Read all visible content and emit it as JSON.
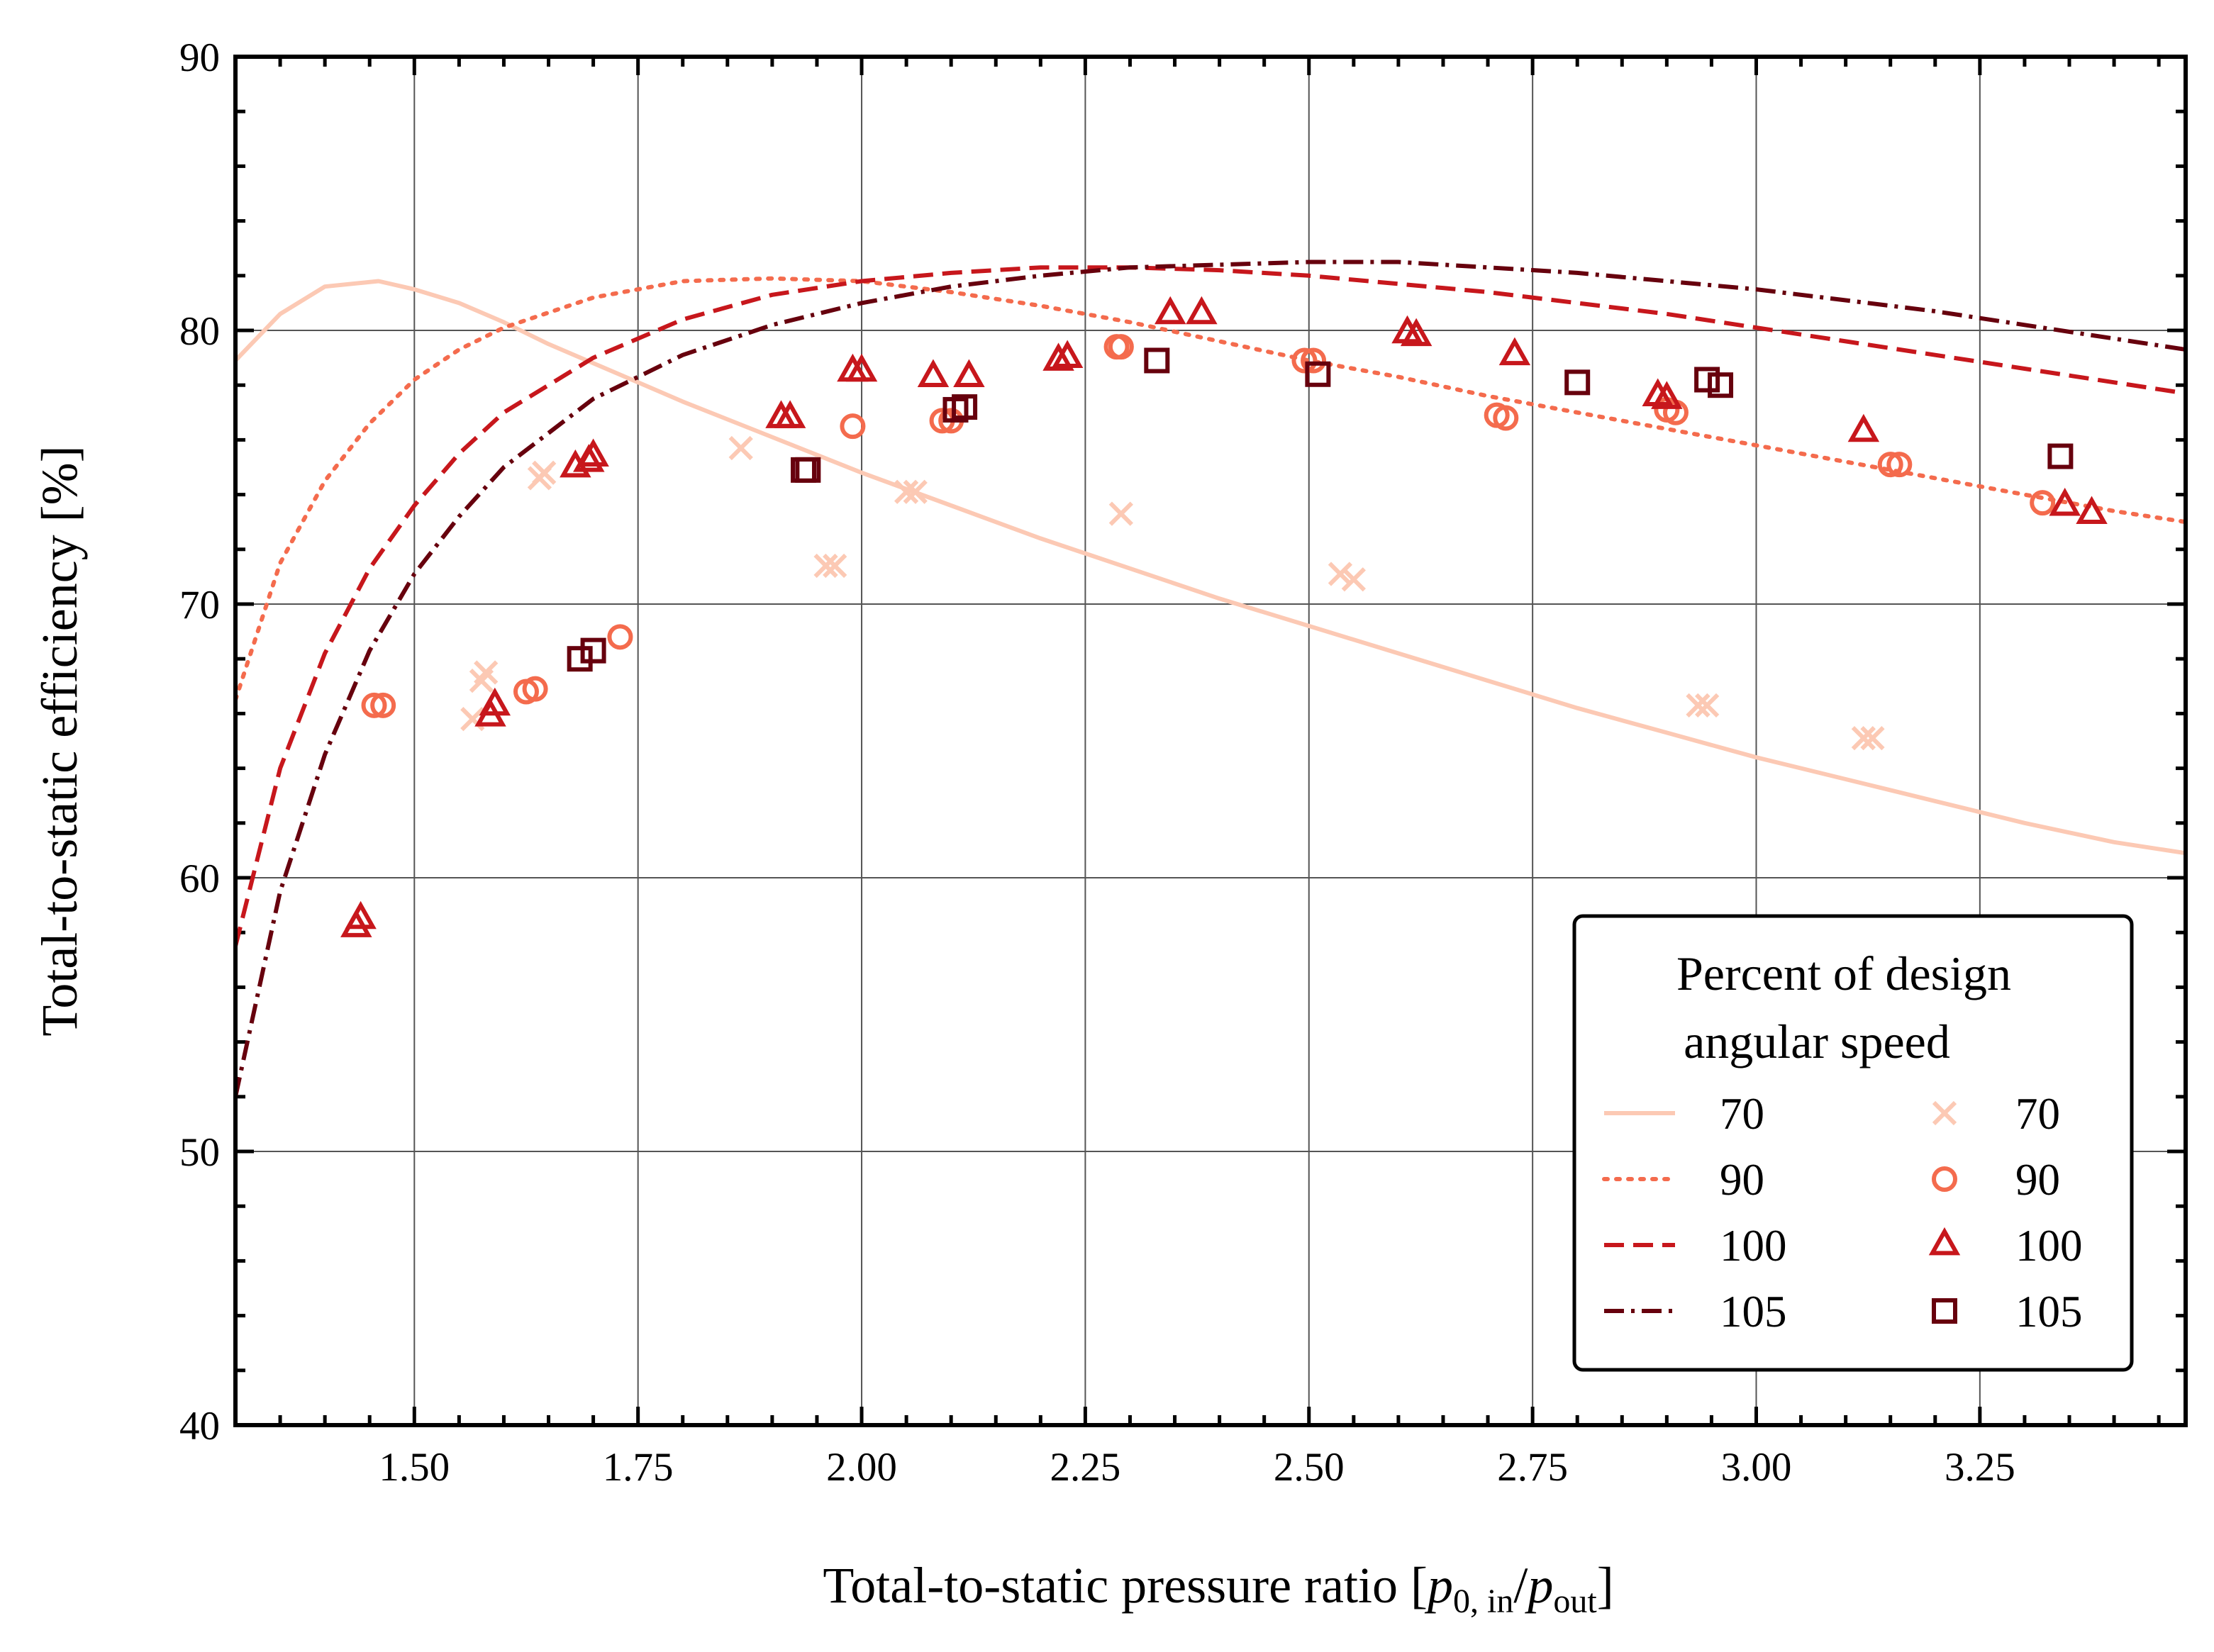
{
  "chart_data": {
    "type": "scatter",
    "xlabel": "Total-to-static pressure ratio [p0,in/pout]",
    "xlabel_parts": {
      "prefix": "Total-to-static pressure ratio [",
      "p1": "p",
      "p1_sub": "0, in",
      "slash": "/",
      "p2": "p",
      "p2_sub": "out",
      "suffix": "]"
    },
    "ylabel": "Total-to-static efficiency [%]",
    "xlim": [
      1.3,
      3.48
    ],
    "ylim": [
      40,
      90
    ],
    "xticks": [
      1.5,
      1.75,
      2.0,
      2.25,
      2.5,
      2.75,
      3.0,
      3.25
    ],
    "xtick_labels": [
      "1.50",
      "1.75",
      "2.00",
      "2.25",
      "2.50",
      "2.75",
      "3.00",
      "3.25"
    ],
    "yticks": [
      40,
      50,
      60,
      70,
      80,
      90
    ],
    "ytick_labels": [
      "40",
      "50",
      "60",
      "70",
      "80",
      "90"
    ],
    "grid": true,
    "legend": {
      "title_line1": "Percent of design",
      "title_line2": "angular speed",
      "placement": "lower right"
    },
    "colors": {
      "70": "#fcc9b4",
      "90": "#f46b4d",
      "100": "#c7171c",
      "105": "#67000d"
    },
    "lines": [
      {
        "name": "70",
        "style": "solid",
        "color": "#fcc9b4",
        "x": [
          1.3,
          1.35,
          1.4,
          1.46,
          1.5,
          1.55,
          1.6,
          1.65,
          1.7,
          1.75,
          1.8,
          1.9,
          2.0,
          2.1,
          2.2,
          2.3,
          2.4,
          2.5,
          2.6,
          2.7,
          2.8,
          2.9,
          3.0,
          3.1,
          3.2,
          3.3,
          3.4,
          3.48
        ],
        "y": [
          78.9,
          80.6,
          81.6,
          81.8,
          81.5,
          81.0,
          80.3,
          79.5,
          78.8,
          78.1,
          77.4,
          76.1,
          74.8,
          73.6,
          72.4,
          71.3,
          70.2,
          69.2,
          68.2,
          67.2,
          66.2,
          65.3,
          64.4,
          63.6,
          62.8,
          62.0,
          61.3,
          60.9
        ]
      },
      {
        "name": "90",
        "style": "dotted",
        "color": "#f46b4d",
        "x": [
          1.3,
          1.35,
          1.4,
          1.45,
          1.5,
          1.55,
          1.6,
          1.7,
          1.8,
          1.9,
          2.0,
          2.1,
          2.2,
          2.3,
          2.4,
          2.5,
          2.6,
          2.7,
          2.8,
          2.9,
          3.0,
          3.1,
          3.2,
          3.3,
          3.4,
          3.48
        ],
        "y": [
          66.5,
          71.5,
          74.5,
          76.6,
          78.2,
          79.3,
          80.1,
          81.2,
          81.8,
          81.9,
          81.8,
          81.4,
          80.9,
          80.3,
          79.6,
          78.9,
          78.3,
          77.6,
          77.0,
          76.4,
          75.8,
          75.2,
          74.6,
          74.0,
          73.4,
          73.0
        ]
      },
      {
        "name": "100",
        "style": "dashed",
        "color": "#c7171c",
        "x": [
          1.3,
          1.35,
          1.4,
          1.45,
          1.5,
          1.55,
          1.6,
          1.7,
          1.8,
          1.9,
          2.0,
          2.1,
          2.2,
          2.3,
          2.4,
          2.5,
          2.6,
          2.7,
          2.8,
          2.9,
          3.0,
          3.1,
          3.2,
          3.3,
          3.4,
          3.48
        ],
        "y": [
          57.5,
          64.0,
          68.2,
          71.3,
          73.6,
          75.5,
          77.0,
          79.0,
          80.4,
          81.3,
          81.8,
          82.1,
          82.3,
          82.3,
          82.2,
          82.0,
          81.7,
          81.4,
          81.0,
          80.6,
          80.1,
          79.6,
          79.1,
          78.6,
          78.1,
          77.7
        ]
      },
      {
        "name": "105",
        "style": "dashdot",
        "color": "#67000d",
        "x": [
          1.3,
          1.35,
          1.4,
          1.45,
          1.5,
          1.55,
          1.6,
          1.7,
          1.8,
          1.9,
          2.0,
          2.1,
          2.2,
          2.3,
          2.4,
          2.5,
          2.6,
          2.7,
          2.8,
          2.9,
          3.0,
          3.1,
          3.2,
          3.3,
          3.4,
          3.48
        ],
        "y": [
          52.0,
          59.5,
          64.5,
          68.3,
          71.1,
          73.2,
          75.0,
          77.5,
          79.1,
          80.2,
          81.0,
          81.6,
          82.0,
          82.3,
          82.4,
          82.5,
          82.5,
          82.3,
          82.1,
          81.8,
          81.5,
          81.1,
          80.7,
          80.2,
          79.7,
          79.3
        ]
      }
    ],
    "series": [
      {
        "name": "70",
        "marker": "x",
        "color": "#fcc9b4",
        "x": [
          1.565,
          1.575,
          1.58,
          1.64,
          1.645,
          1.865,
          1.96,
          1.97,
          2.05,
          2.06,
          2.29,
          2.535,
          2.55,
          2.935,
          2.945,
          3.12,
          3.13
        ],
        "y": [
          65.8,
          67.2,
          67.5,
          74.6,
          74.8,
          75.7,
          71.4,
          71.4,
          74.1,
          74.1,
          73.3,
          71.1,
          70.9,
          66.3,
          66.3,
          65.1,
          65.1
        ]
      },
      {
        "name": "90",
        "marker": "o",
        "color": "#f46b4d",
        "x": [
          1.455,
          1.465,
          1.625,
          1.635,
          1.73,
          1.99,
          2.09,
          2.1,
          2.285,
          2.29,
          2.495,
          2.505,
          2.71,
          2.72,
          2.9,
          2.91,
          3.15,
          3.16,
          3.32
        ],
        "y": [
          66.3,
          66.3,
          66.8,
          66.9,
          68.8,
          76.5,
          76.7,
          76.7,
          79.4,
          79.4,
          78.9,
          78.9,
          76.9,
          76.8,
          77.1,
          77.0,
          75.1,
          75.1,
          73.7
        ]
      },
      {
        "name": "100",
        "marker": "^",
        "color": "#c7171c",
        "x": [
          1.435,
          1.44,
          1.585,
          1.59,
          1.68,
          1.695,
          1.7,
          1.91,
          1.92,
          1.99,
          2.0,
          2.08,
          2.12,
          2.22,
          2.23,
          2.345,
          2.38,
          2.61,
          2.62,
          2.73,
          2.89,
          2.9,
          3.12,
          3.345,
          3.375
        ],
        "y": [
          58.2,
          58.5,
          65.9,
          66.3,
          75.0,
          75.2,
          75.4,
          76.8,
          76.8,
          78.5,
          78.5,
          78.3,
          78.3,
          78.9,
          79.0,
          80.6,
          80.6,
          79.9,
          79.8,
          79.1,
          77.6,
          77.5,
          76.3,
          73.6,
          73.3
        ]
      },
      {
        "name": "105",
        "marker": "s",
        "color": "#67000d",
        "x": [
          1.685,
          1.7,
          1.935,
          1.94,
          2.105,
          2.115,
          2.33,
          2.51,
          2.8,
          2.945,
          2.96,
          3.34
        ],
        "y": [
          68.0,
          68.3,
          74.9,
          74.9,
          77.1,
          77.2,
          78.9,
          78.4,
          78.1,
          78.2,
          78.0,
          75.4
        ]
      }
    ]
  }
}
